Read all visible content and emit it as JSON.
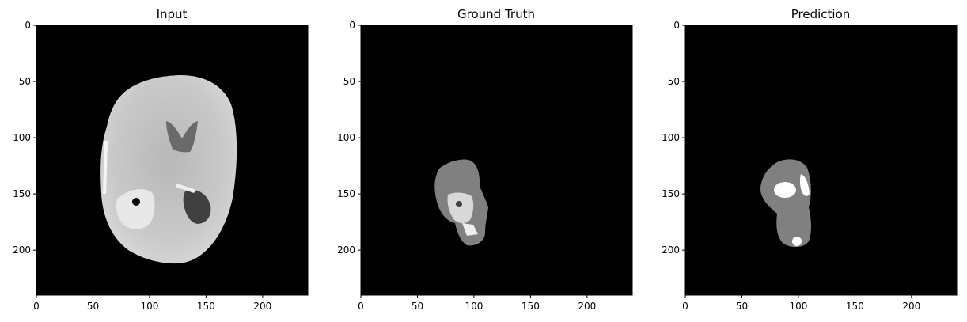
{
  "chart_data": [
    {
      "type": "heatmap",
      "title": "Input",
      "xlim": [
        0,
        240
      ],
      "ylim": [
        240,
        0
      ],
      "x_ticks": [
        0,
        50,
        100,
        150,
        200
      ],
      "y_ticks": [
        0,
        50,
        100,
        150,
        200
      ],
      "colormap": "gray",
      "content": "axial brain MRI slice"
    },
    {
      "type": "heatmap",
      "title": "Ground Truth",
      "xlim": [
        0,
        240
      ],
      "ylim": [
        240,
        0
      ],
      "x_ticks": [
        0,
        50,
        100,
        150,
        200
      ],
      "y_ticks": [
        0,
        50,
        100,
        150,
        200
      ],
      "colormap": "gray",
      "content": "tumor segmentation mask"
    },
    {
      "type": "heatmap",
      "title": "Prediction",
      "xlim": [
        0,
        240
      ],
      "ylim": [
        240,
        0
      ],
      "x_ticks": [
        0,
        50,
        100,
        150,
        200
      ],
      "y_ticks": [
        0,
        50,
        100,
        150,
        200
      ],
      "colormap": "gray",
      "content": "predicted tumor segmentation mask"
    }
  ],
  "colors": {
    "background": "#000000",
    "gray_class": "#808080",
    "white_class": "#ffffff"
  }
}
